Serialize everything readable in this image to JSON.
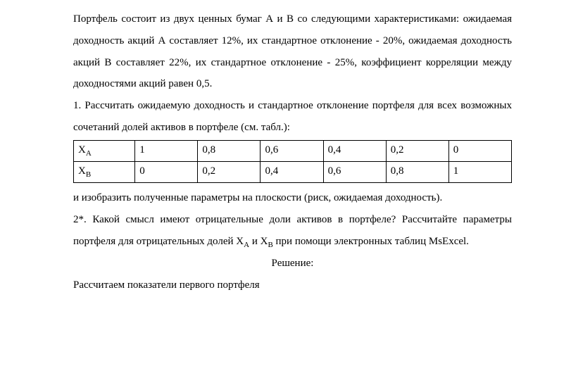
{
  "p1": "Портфель состоит из двух ценных бумаг А и В со следующими характеристиками: ожидаемая доходность акций А составляет 12%, их стандартное отклонение - 20%, ожидаемая доходность акций В составляет 22%, их стандартное отклонение - 25%, коэффициент корреляции между доходностями акций равен 0,5.",
  "p2": "1. Рассчитать ожидаемую доходность и стандартное отклонение портфеля для всех возможных сочетаний долей активов в портфеле (см. табл.):",
  "table": {
    "row1_label_base": "Х",
    "row1_label_sub": "А",
    "row1": [
      "1",
      "0,8",
      "0,6",
      "0,4",
      "0,2",
      "0"
    ],
    "row2_label_base": "Х",
    "row2_label_sub": "В",
    "row2": [
      "0",
      "0,2",
      "0,4",
      "0,6",
      "0,8",
      "1"
    ]
  },
  "p3": "и изобразить полученные параметры на плоскости (риск, ожидаемая доходность).",
  "p4_a": "2*. Какой смысл имеют отрицательные доли активов в портфеле? Рассчитайте параметры портфеля для отрицательных долей Х",
  "p4_sub1": "А",
  "p4_b": " и Х",
  "p4_sub2": "В",
  "p4_c": " при помощи электронных таблиц MsExcel.",
  "heading": "Решение:",
  "p5": "Рассчитаем показатели первого портфеля"
}
